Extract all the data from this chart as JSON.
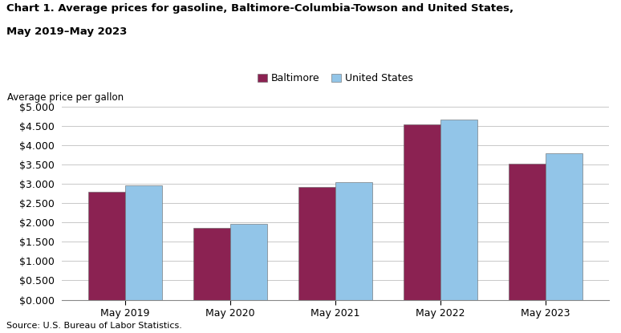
{
  "title_line1": "Chart 1. Average prices for gasoline, Baltimore-Columbia-Towson and United States,",
  "title_line2": "May 2019–May 2023",
  "ylabel_text": "Average price per gallon",
  "source": "Source: U.S. Bureau of Labor Statistics.",
  "categories": [
    "May 2019",
    "May 2020",
    "May 2021",
    "May 2022",
    "May 2023"
  ],
  "baltimore": [
    2.789,
    1.856,
    2.922,
    4.539,
    3.519
  ],
  "us": [
    2.958,
    1.957,
    3.051,
    4.672,
    3.789
  ],
  "baltimore_color": "#8B2252",
  "us_color": "#92C5E8",
  "bar_edge_color": "#666666",
  "ylim": [
    0,
    5.0
  ],
  "yticks": [
    0.0,
    0.5,
    1.0,
    1.5,
    2.0,
    2.5,
    3.0,
    3.5,
    4.0,
    4.5,
    5.0
  ],
  "legend_baltimore": "Baltimore",
  "legend_us": "United States",
  "bar_width": 0.35,
  "figsize": [
    7.74,
    4.15
  ],
  "dpi": 100
}
